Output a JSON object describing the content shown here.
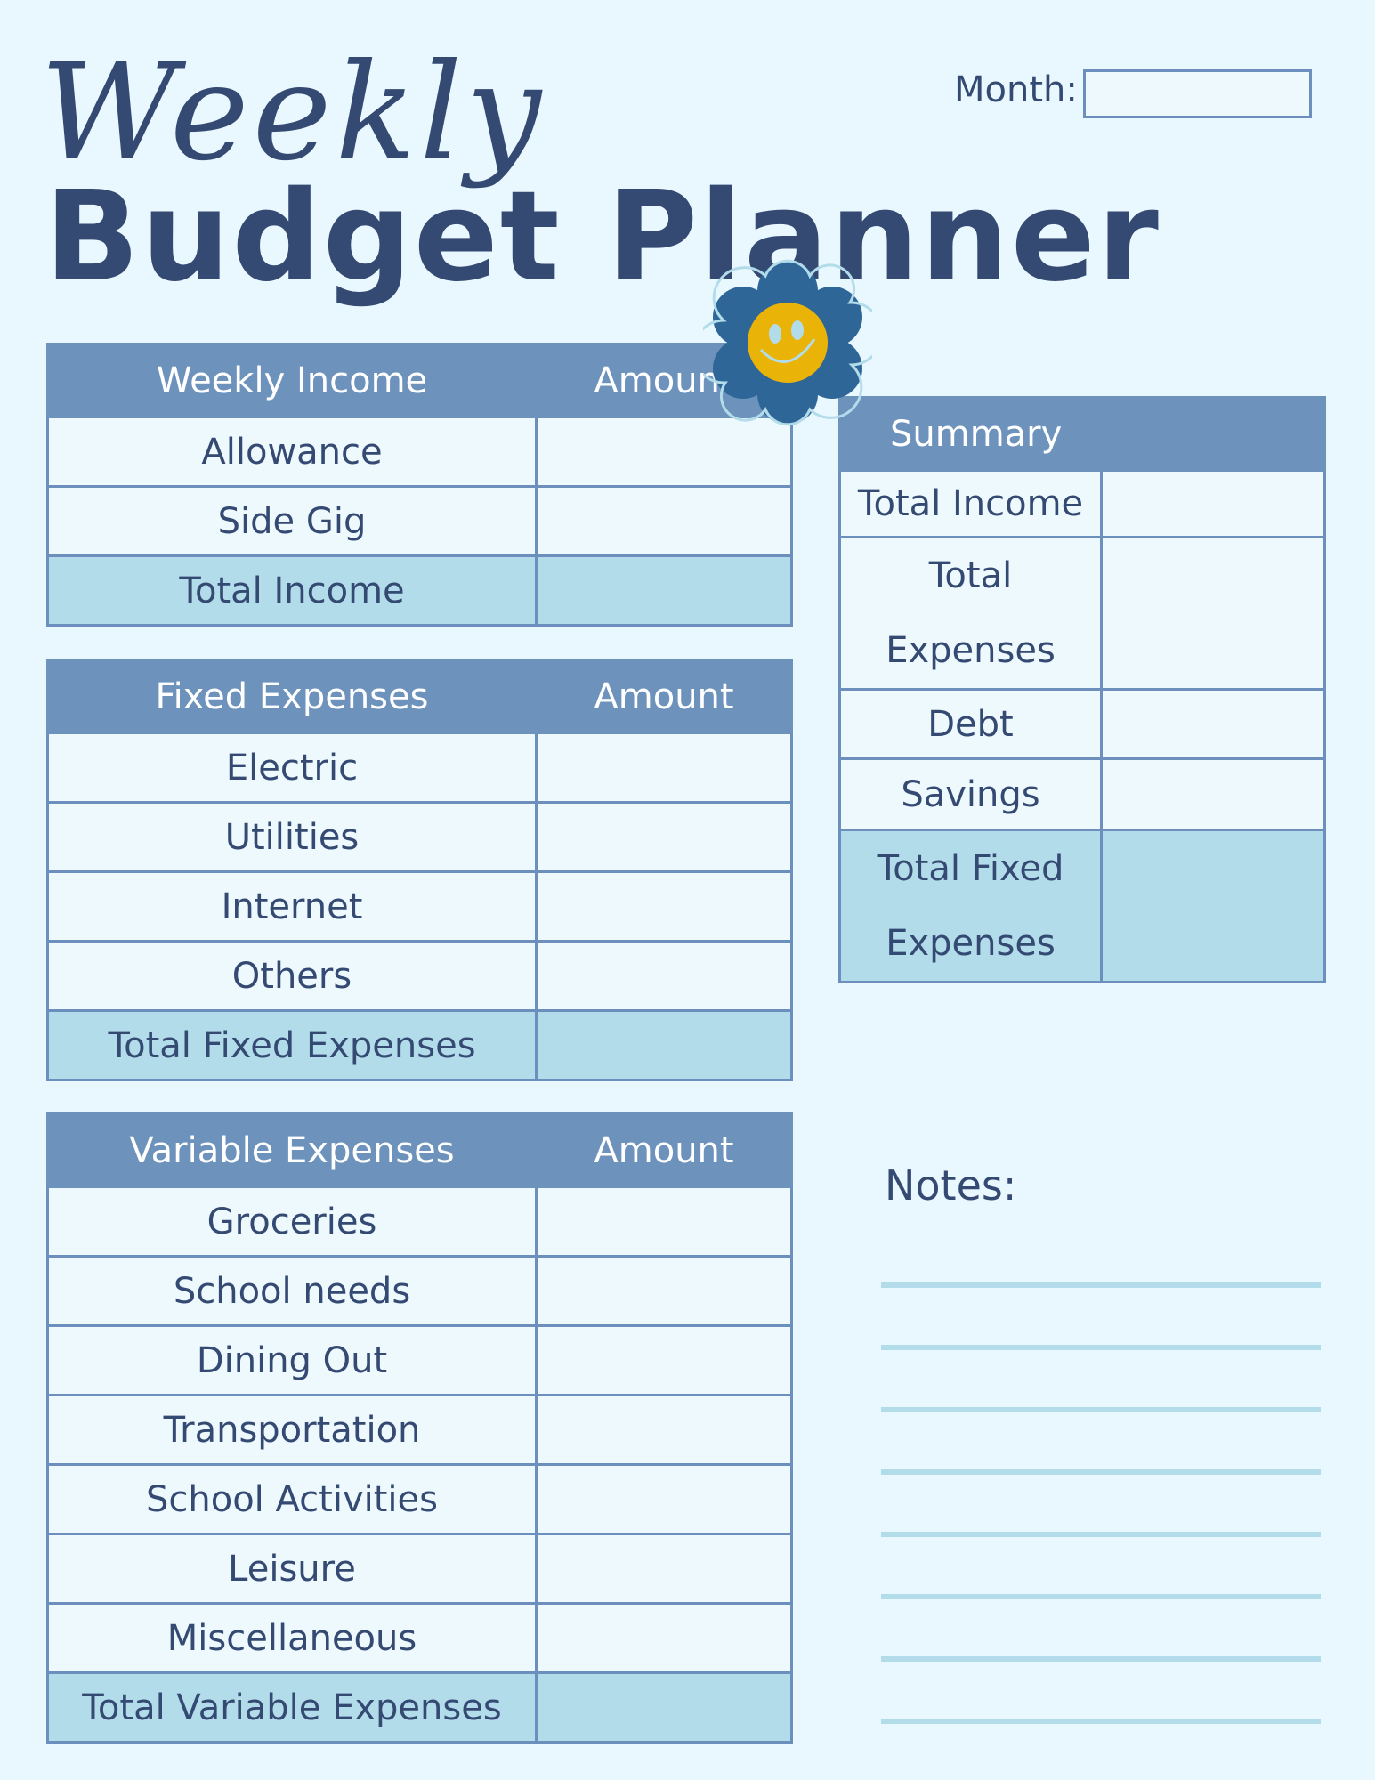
{
  "header": {
    "script_title": "Weekly",
    "title": "Budget Planner",
    "month_label": "Month:",
    "month_value": ""
  },
  "income": {
    "header": [
      "Weekly Income",
      "Amount"
    ],
    "rows": [
      "Allowance",
      "Side Gig"
    ],
    "total": "Total Income"
  },
  "fixed": {
    "header": [
      "Fixed Expenses",
      "Amount"
    ],
    "rows": [
      "Electric",
      "Utilities",
      "Internet",
      "Others"
    ],
    "total": "Total Fixed Expenses"
  },
  "variable": {
    "header": [
      "Variable Expenses",
      "Amount"
    ],
    "rows": [
      "Groceries",
      "School needs",
      "Dining Out",
      "Transportation",
      "School Activities",
      "Leisure",
      "Miscellaneous"
    ],
    "total": "Total Variable Expenses"
  },
  "summary": {
    "header": "Summary",
    "rows": [
      "Total Income",
      "Total Expenses",
      "Debt",
      "Savings"
    ],
    "total": "Total Fixed Expenses"
  },
  "notes": {
    "label": "Notes:",
    "line_count": 8
  },
  "colors": {
    "background": "#e9f7fe",
    "header": "#6d93bd",
    "text": "#344a72",
    "total_row": "#b3dcea",
    "flower": "#2e6698",
    "smiley": "#e9b308"
  },
  "decoration": {
    "icon": "smiley-flower-icon"
  }
}
